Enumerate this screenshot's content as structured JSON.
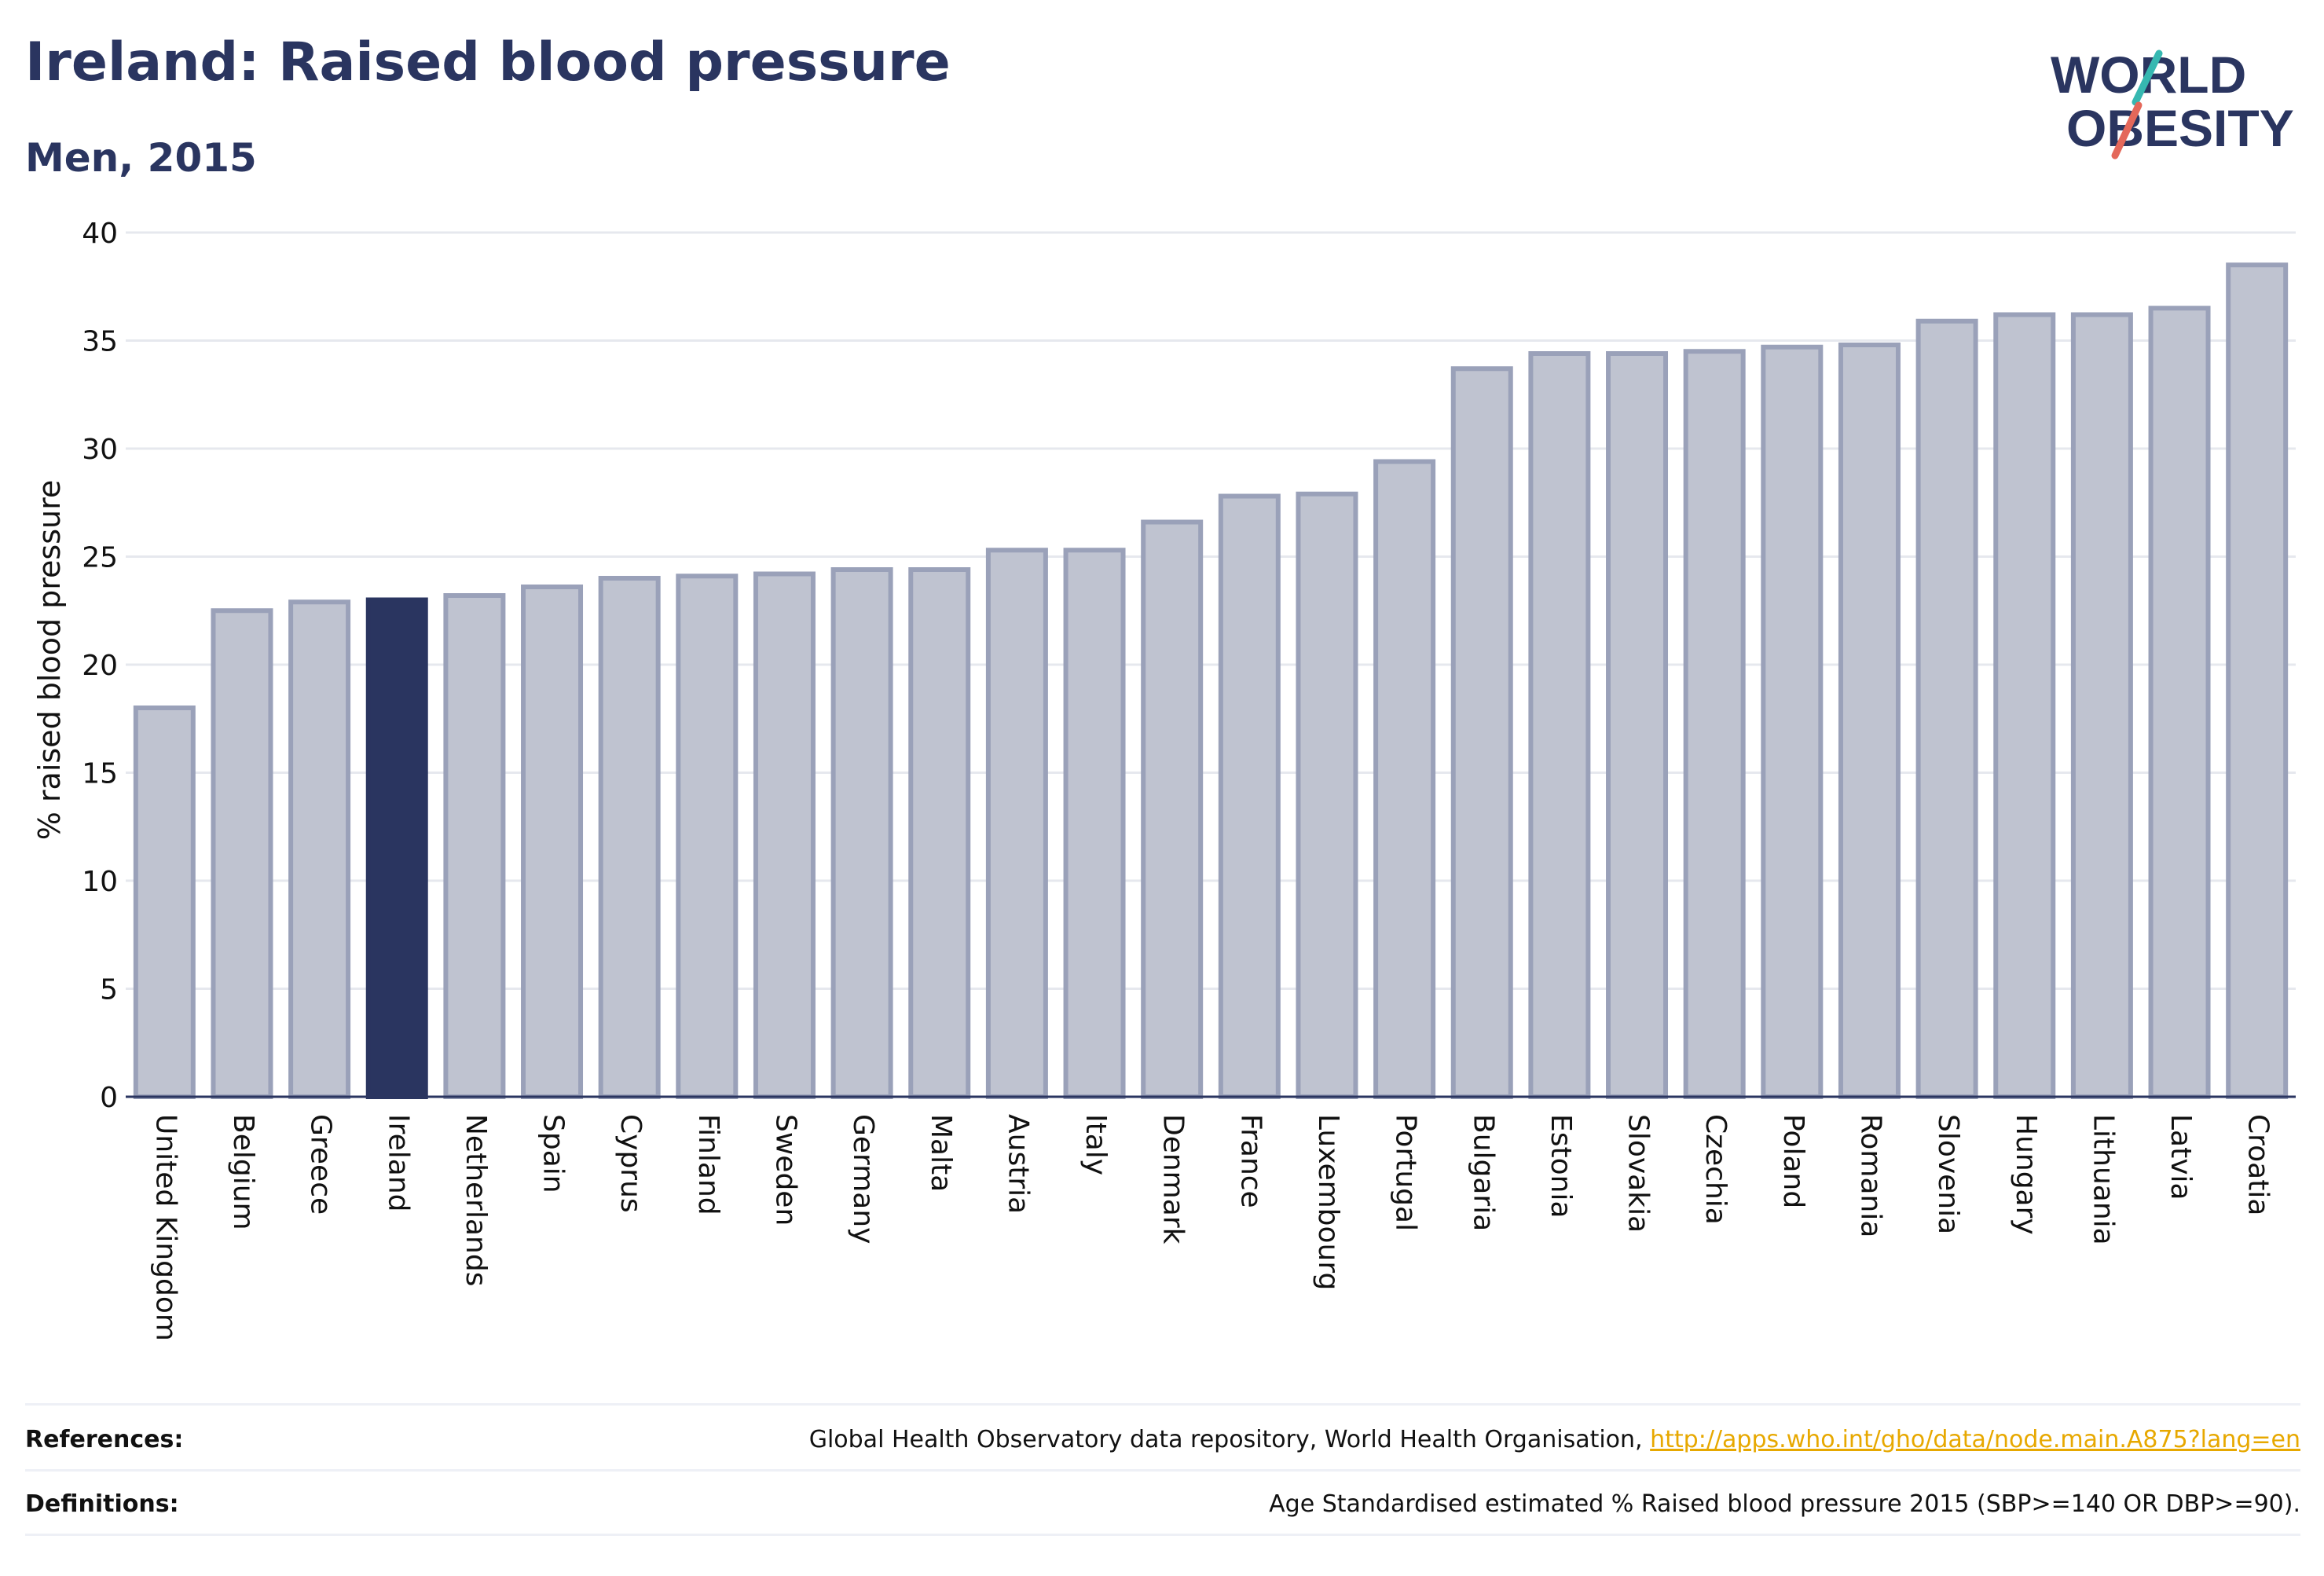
{
  "header": {
    "title": "Ireland: Raised blood pressure",
    "subtitle": "Men, 2015"
  },
  "logo": {
    "line1": "WORLD",
    "line2": "OBESITY"
  },
  "chart_data": {
    "type": "bar",
    "ylabel": "% raised blood pressure",
    "ylim": [
      0,
      40
    ],
    "yticks": [
      0,
      5,
      10,
      15,
      20,
      25,
      30,
      35,
      40
    ],
    "grid": true,
    "highlight": "Ireland",
    "colors": {
      "bar": "#bfc3d0",
      "bar_edge": "#9aa1b9",
      "highlight": "#2a3560",
      "grid": "#e6e8ee",
      "axis": "#2a3560"
    },
    "categories": [
      "United Kingdom",
      "Belgium",
      "Greece",
      "Ireland",
      "Netherlands",
      "Spain",
      "Cyprus",
      "Finland",
      "Sweden",
      "Germany",
      "Malta",
      "Austria",
      "Italy",
      "Denmark",
      "France",
      "Luxembourg",
      "Portugal",
      "Bulgaria",
      "Estonia",
      "Slovakia",
      "Czechia",
      "Poland",
      "Romania",
      "Slovenia",
      "Hungary",
      "Lithuania",
      "Latvia",
      "Croatia"
    ],
    "values": [
      18.0,
      22.5,
      22.9,
      23.0,
      23.2,
      23.6,
      24.0,
      24.1,
      24.2,
      24.4,
      24.4,
      25.3,
      25.3,
      26.6,
      27.8,
      27.9,
      29.4,
      33.7,
      34.4,
      34.4,
      34.5,
      34.7,
      34.8,
      35.9,
      36.2,
      36.2,
      36.5,
      38.5
    ]
  },
  "footer": {
    "references_label": "References:",
    "references_text": "Global Health Observatory data repository, World Health Organisation,",
    "references_link": "http://apps.who.int/gho/data/node.main.A875?lang=en",
    "definitions_label": "Definitions:",
    "definitions_text": "Age Standardised estimated % Raised blood pressure 2015 (SBP>=140 OR DBP>=90)."
  }
}
